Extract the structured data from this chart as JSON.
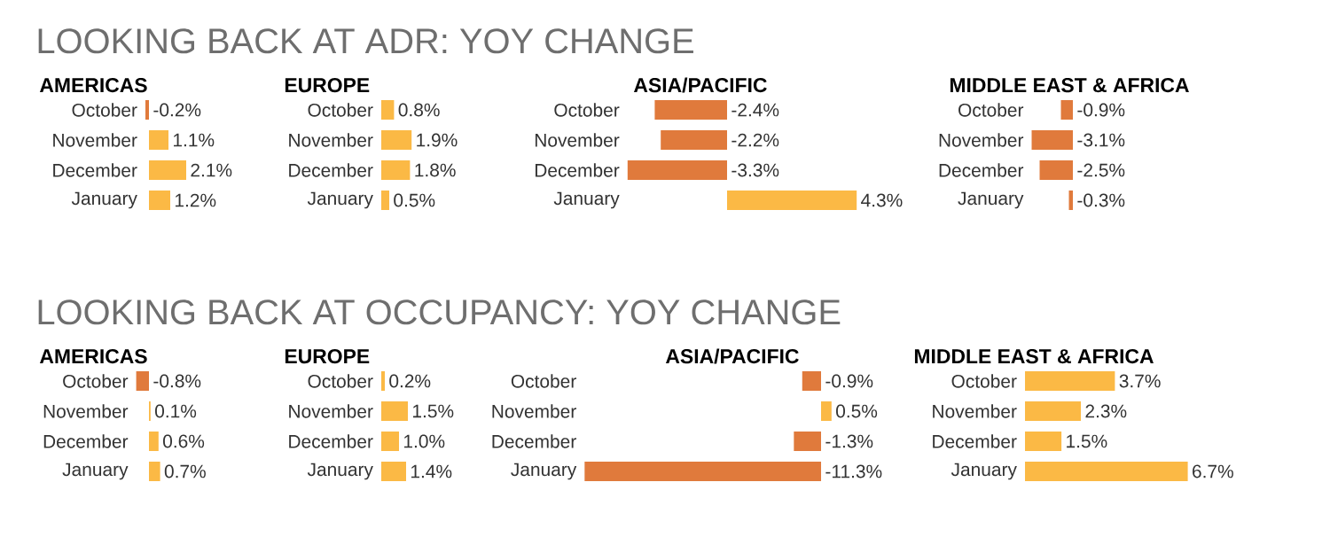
{
  "chart_data": [
    {
      "type": "other",
      "title": "LOOKING BACK AT ADR: YOY CHANGE"
    },
    {
      "type": "bar",
      "orientation": "horizontal",
      "title": "AMERICAS",
      "categories": [
        "October",
        "November",
        "December",
        "January"
      ],
      "values": [
        -0.2,
        1.1,
        2.1,
        1.2
      ],
      "colors": [
        "#e07a3c",
        "#fbb945",
        "#fbb945",
        "#fbb945"
      ],
      "value_labels": [
        "-0.2%",
        "1.1%",
        "2.1%",
        "1.2%"
      ]
    },
    {
      "type": "bar",
      "orientation": "horizontal",
      "title": "EUROPE",
      "categories": [
        "October",
        "November",
        "December",
        "January"
      ],
      "values": [
        0.8,
        1.9,
        1.8,
        0.5
      ],
      "colors": [
        "#fbb945",
        "#fbb945",
        "#fbb945",
        "#fbb945"
      ],
      "value_labels": [
        "0.8%",
        "1.9%",
        "1.8%",
        "0.5%"
      ]
    },
    {
      "type": "bar",
      "orientation": "horizontal",
      "title": "ASIA/PACIFIC",
      "categories": [
        "October",
        "November",
        "December",
        "January"
      ],
      "values": [
        -2.4,
        -2.2,
        -3.3,
        4.3
      ],
      "colors": [
        "#e07a3c",
        "#e07a3c",
        "#e07a3c",
        "#fbb945"
      ],
      "value_labels": [
        "-2.4%",
        "-2.2%",
        "-3.3%",
        "4.3%"
      ]
    },
    {
      "type": "bar",
      "orientation": "horizontal",
      "title": "MIDDLE EAST & AFRICA",
      "categories": [
        "October",
        "November",
        "December",
        "January"
      ],
      "values": [
        -0.9,
        -3.1,
        -2.5,
        -0.3
      ],
      "colors": [
        "#e07a3c",
        "#e07a3c",
        "#e07a3c",
        "#e07a3c"
      ],
      "value_labels": [
        "-0.9%",
        "-3.1%",
        "-2.5%",
        "-0.3%"
      ]
    },
    {
      "type": "other",
      "title": "LOOKING BACK AT OCCUPANCY: YOY CHANGE"
    },
    {
      "type": "bar",
      "orientation": "horizontal",
      "title": "AMERICAS",
      "categories": [
        "October",
        "November",
        "December",
        "January"
      ],
      "values": [
        -0.8,
        0.1,
        0.6,
        0.7
      ],
      "colors": [
        "#e07a3c",
        "#fbb945",
        "#fbb945",
        "#fbb945"
      ],
      "value_labels": [
        "-0.8%",
        "0.1%",
        "0.6%",
        "0.7%"
      ]
    },
    {
      "type": "bar",
      "orientation": "horizontal",
      "title": "EUROPE",
      "categories": [
        "October",
        "November",
        "December",
        "January"
      ],
      "values": [
        0.2,
        1.5,
        1.0,
        1.4
      ],
      "colors": [
        "#fbb945",
        "#fbb945",
        "#fbb945",
        "#fbb945"
      ],
      "value_labels": [
        "0.2%",
        "1.5%",
        "1.0%",
        "1.4%"
      ]
    },
    {
      "type": "bar",
      "orientation": "horizontal",
      "title": "ASIA/PACIFIC",
      "categories": [
        "October",
        "November",
        "December",
        "January"
      ],
      "values": [
        -0.9,
        0.5,
        -1.3,
        -11.3
      ],
      "colors": [
        "#e07a3c",
        "#fbb945",
        "#e07a3c",
        "#e07a3c"
      ],
      "value_labels": [
        "-0.9%",
        "0.5%",
        "-1.3%",
        "-11.3%"
      ]
    },
    {
      "type": "bar",
      "orientation": "horizontal",
      "title": "MIDDLE EAST & AFRICA",
      "categories": [
        "October",
        "November",
        "December",
        "January"
      ],
      "values": [
        3.7,
        2.3,
        1.5,
        6.7
      ],
      "colors": [
        "#fbb945",
        "#fbb945",
        "#fbb945",
        "#fbb945"
      ],
      "value_labels": [
        "3.7%",
        "2.3%",
        "1.5%",
        "6.7%"
      ]
    }
  ]
}
